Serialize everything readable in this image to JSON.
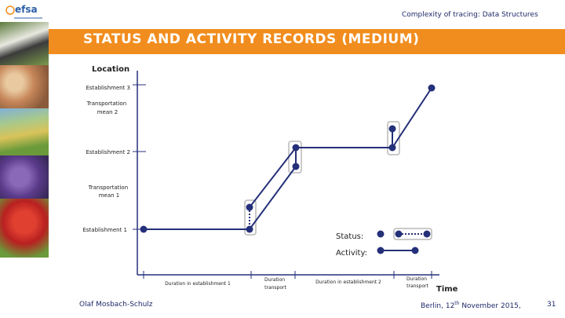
{
  "header": {
    "logo_text": "efsa",
    "subtitle": "Complexity of tracing: Data Structures",
    "title": "STATUS AND ACTIVITY RECORDS (MEDIUM)"
  },
  "diagram": {
    "y_axis_label": "Location",
    "x_axis_label": "Time",
    "locations": [
      [
        "Establishment 3"
      ],
      [
        "Transportation",
        "mean 2"
      ],
      [
        "Establishment 2"
      ],
      [
        "Transportation",
        "mean 1"
      ],
      [
        "Establishment 1"
      ]
    ],
    "durations": [
      [
        "Duration in establishment 1"
      ],
      [
        "Duration",
        "transport"
      ],
      [
        "Duration in establishment 2"
      ],
      [
        "Duration",
        "transport"
      ]
    ],
    "legend": {
      "status_label": "Status:",
      "activity_label": "Activity:"
    },
    "colors": {
      "line": "#25307a",
      "highlight": "#b8b8b8",
      "accent": "#f18d1e"
    }
  },
  "footer": {
    "author": "Olaf Mosbach-Schulz",
    "location_date_pre": "Berlin, 12",
    "location_date_sup": "th",
    "location_date_post": " November 2015,",
    "page_number": "31"
  }
}
